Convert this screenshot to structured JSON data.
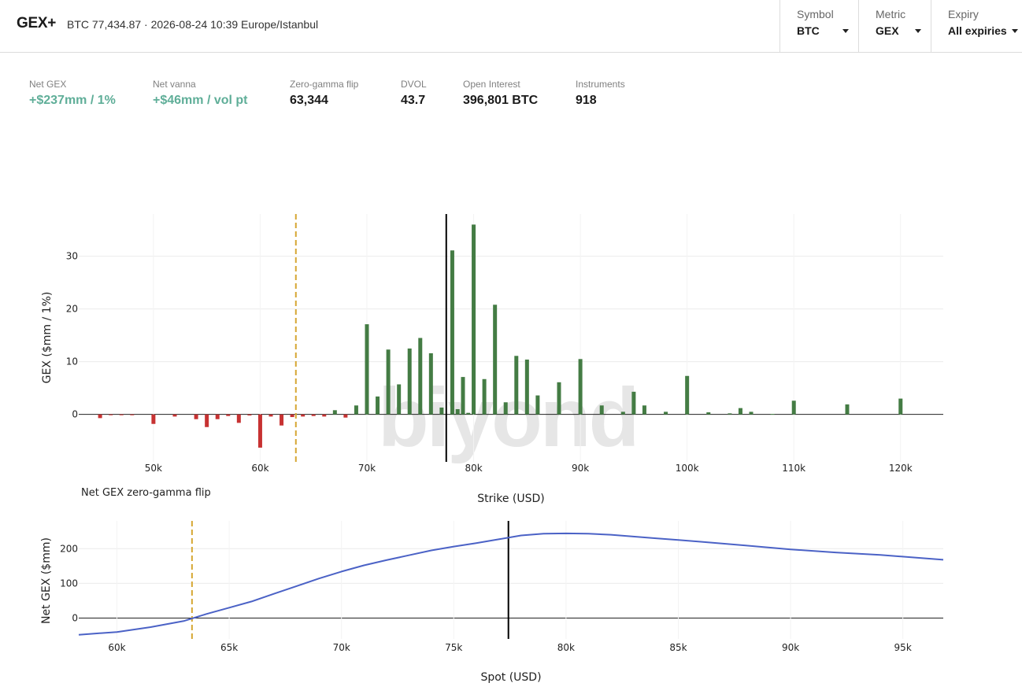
{
  "header": {
    "brand": "GEX+",
    "meta": "BTC 77,434.87 · 2026-08-24 10:39 Europe/Istanbul"
  },
  "selectors": [
    {
      "label": "Symbol",
      "value": "BTC"
    },
    {
      "label": "Metric",
      "value": "GEX"
    },
    {
      "label": "Expiry",
      "value": "All expiries"
    }
  ],
  "stats": [
    {
      "label": "Net GEX",
      "value": "+$237mm / 1%",
      "tone": "positive"
    },
    {
      "label": "Net vanna",
      "value": "+$46mm / vol pt",
      "tone": "positive"
    },
    {
      "label": "Zero-gamma flip",
      "value": "63,344",
      "tone": "neutral"
    },
    {
      "label": "DVOL",
      "value": "43.7",
      "tone": "neutral"
    },
    {
      "label": "Open Interest",
      "value": "396,801 BTC",
      "tone": "neutral"
    },
    {
      "label": "Instruments",
      "value": "918",
      "tone": "neutral"
    }
  ],
  "watermark": "biyond",
  "colors": {
    "positive_bar": "#447c44",
    "negative_bar": "#c73232",
    "flip_line": "#d6a733",
    "spot_line": "#000000",
    "profile_line": "#4b62c6",
    "positive_text": "#5fae98"
  },
  "chart_data": [
    {
      "type": "bar",
      "name": "gex-by-strike",
      "xlabel": "Strike (USD)",
      "ylabel": "GEX ($mm / 1%)",
      "annotation": "Net GEX zero-gamma flip",
      "xlim": [
        43000,
        124000
      ],
      "ylim": [
        -9,
        38
      ],
      "xticks": [
        50000,
        60000,
        70000,
        80000,
        90000,
        100000,
        110000,
        120000
      ],
      "xtick_labels": [
        "50k",
        "60k",
        "70k",
        "80k",
        "90k",
        "100k",
        "110k",
        "120k"
      ],
      "yticks": [
        0,
        10,
        20,
        30
      ],
      "yticks_labels": [
        "0",
        "10",
        "20",
        "30"
      ],
      "spot": 77434.87,
      "zero_gamma_flip": 63344,
      "grid": true,
      "bars": [
        {
          "strike": 45000,
          "gex": -0.7
        },
        {
          "strike": 46000,
          "gex": -0.1
        },
        {
          "strike": 47000,
          "gex": -0.15
        },
        {
          "strike": 48000,
          "gex": -0.1
        },
        {
          "strike": 50000,
          "gex": -1.8
        },
        {
          "strike": 52000,
          "gex": -0.4
        },
        {
          "strike": 54000,
          "gex": -0.9
        },
        {
          "strike": 55000,
          "gex": -2.4
        },
        {
          "strike": 56000,
          "gex": -0.9
        },
        {
          "strike": 57000,
          "gex": -0.3
        },
        {
          "strike": 58000,
          "gex": -1.6
        },
        {
          "strike": 59000,
          "gex": -0.2
        },
        {
          "strike": 60000,
          "gex": -6.3
        },
        {
          "strike": 61000,
          "gex": -0.4
        },
        {
          "strike": 62000,
          "gex": -2.1
        },
        {
          "strike": 63000,
          "gex": -0.5
        },
        {
          "strike": 64000,
          "gex": -0.4
        },
        {
          "strike": 65000,
          "gex": -0.3
        },
        {
          "strike": 66000,
          "gex": -0.4
        },
        {
          "strike": 67000,
          "gex": 0.8
        },
        {
          "strike": 68000,
          "gex": -0.6
        },
        {
          "strike": 69000,
          "gex": 1.7
        },
        {
          "strike": 70000,
          "gex": 17.1
        },
        {
          "strike": 71000,
          "gex": 3.4
        },
        {
          "strike": 72000,
          "gex": 12.3
        },
        {
          "strike": 73000,
          "gex": 5.7
        },
        {
          "strike": 74000,
          "gex": 12.5
        },
        {
          "strike": 75000,
          "gex": 14.5
        },
        {
          "strike": 76000,
          "gex": 11.6
        },
        {
          "strike": 77000,
          "gex": 1.3
        },
        {
          "strike": 78000,
          "gex": 31.1
        },
        {
          "strike": 78500,
          "gex": 1.0
        },
        {
          "strike": 79000,
          "gex": 7.1
        },
        {
          "strike": 79500,
          "gex": 0.3
        },
        {
          "strike": 80000,
          "gex": 36.0
        },
        {
          "strike": 81000,
          "gex": 6.7
        },
        {
          "strike": 82000,
          "gex": 20.8
        },
        {
          "strike": 83000,
          "gex": 2.3
        },
        {
          "strike": 84000,
          "gex": 11.1
        },
        {
          "strike": 85000,
          "gex": 10.4
        },
        {
          "strike": 86000,
          "gex": 3.6
        },
        {
          "strike": 88000,
          "gex": 6.1
        },
        {
          "strike": 90000,
          "gex": 10.5
        },
        {
          "strike": 92000,
          "gex": 1.7
        },
        {
          "strike": 94000,
          "gex": 0.5
        },
        {
          "strike": 95000,
          "gex": 4.3
        },
        {
          "strike": 96000,
          "gex": 1.7
        },
        {
          "strike": 98000,
          "gex": 0.5
        },
        {
          "strike": 100000,
          "gex": 7.3
        },
        {
          "strike": 102000,
          "gex": 0.4
        },
        {
          "strike": 104000,
          "gex": 0.2
        },
        {
          "strike": 105000,
          "gex": 1.2
        },
        {
          "strike": 106000,
          "gex": 0.5
        },
        {
          "strike": 108000,
          "gex": 0.1
        },
        {
          "strike": 110000,
          "gex": 2.6
        },
        {
          "strike": 115000,
          "gex": 1.9
        },
        {
          "strike": 120000,
          "gex": 3.0
        }
      ]
    },
    {
      "type": "line",
      "name": "net-gex-profile",
      "xlabel": "Spot (USD)",
      "ylabel": "Net GEX ($mm)",
      "xlim": [
        58300,
        96800
      ],
      "ylim": [
        -60,
        280
      ],
      "xticks": [
        60000,
        65000,
        70000,
        75000,
        80000,
        85000,
        90000,
        95000
      ],
      "xtick_labels": [
        "60k",
        "65k",
        "70k",
        "75k",
        "80k",
        "85k",
        "90k",
        "95k"
      ],
      "yticks": [
        0,
        100,
        200
      ],
      "yticks_labels": [
        "0",
        "100",
        "200"
      ],
      "spot": 77434.87,
      "zero_gamma_flip": 63344,
      "grid": true,
      "x": [
        58300,
        60000,
        61500,
        63000,
        64000,
        65000,
        66000,
        67000,
        68000,
        69000,
        70000,
        71000,
        72000,
        73000,
        74000,
        75000,
        76000,
        77000,
        78000,
        79000,
        80000,
        81000,
        82000,
        83000,
        84000,
        85000,
        86000,
        88000,
        90000,
        92000,
        94000,
        96800
      ],
      "y": [
        -48,
        -40,
        -26,
        -8,
        12,
        30,
        48,
        70,
        92,
        114,
        134,
        152,
        167,
        181,
        195,
        206,
        216,
        227,
        238,
        243,
        244,
        243,
        240,
        235,
        230,
        225,
        220,
        209,
        198,
        189,
        182,
        168
      ]
    }
  ]
}
